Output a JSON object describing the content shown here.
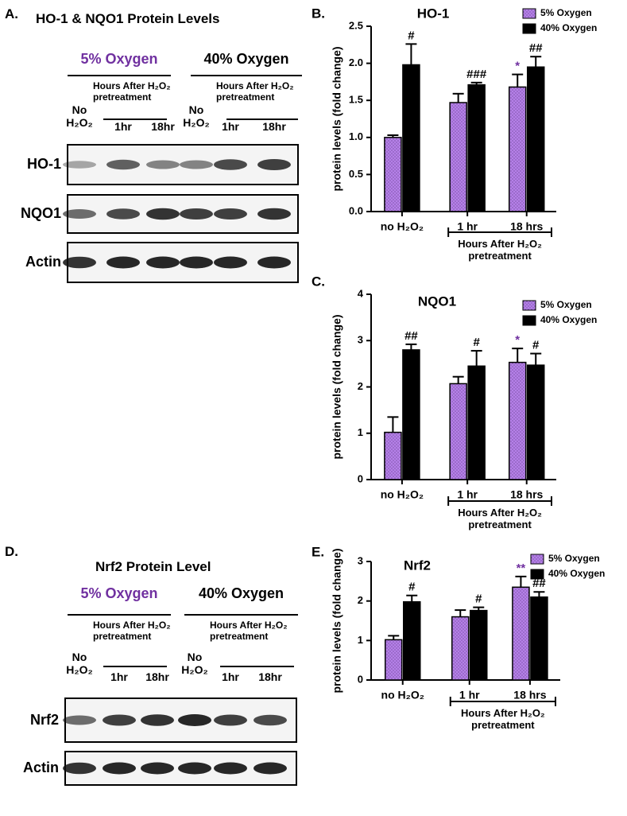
{
  "blots": [
    {
      "letter": "A.",
      "title": "HO-1 & NQO1 Protein Levels",
      "groups": [
        {
          "label": "5% Oxygen",
          "color": "#7030a0",
          "hours_label": "Hours After H₂O₂ pretreatment",
          "lanes": [
            "No H₂O₂",
            "1hr",
            "18hr"
          ]
        },
        {
          "label": "40% Oxygen",
          "color": "#000000",
          "hours_label": "Hours After H₂O₂ pretreatment",
          "lanes": [
            "No H₂O₂",
            "1hr",
            "18hr"
          ]
        }
      ],
      "rows": [
        "HO-1",
        "NQO1",
        "Actin"
      ]
    },
    {
      "letter": "D.",
      "title": "Nrf2 Protein Level",
      "groups": [
        {
          "label": "5% Oxygen",
          "color": "#7030a0",
          "hours_label": "Hours After H₂O₂ pretreatment",
          "lanes": [
            "No H₂O₂",
            "1hr",
            "18hr"
          ]
        },
        {
          "label": "40% Oxygen",
          "color": "#000000",
          "hours_label": "Hours After H₂O₂ pretreatment",
          "lanes": [
            "No H₂O₂",
            "1hr",
            "18hr"
          ]
        }
      ],
      "rows": [
        "Nrf2",
        "Actin"
      ]
    }
  ],
  "chart_data": [
    {
      "type": "bar",
      "panel": "B.",
      "title": "HO-1",
      "y_label": "protein levels (fold change)",
      "categories": [
        "no H₂O₂",
        "1 hr",
        "18 hrs"
      ],
      "group_label": "Hours After H₂O₂ pretreatment",
      "ylim": [
        0,
        2.5
      ],
      "yticks": [
        {
          "value": 0,
          "label": "0.0"
        },
        0.5,
        {
          "value": 1,
          "label": "1.0"
        },
        1.5,
        {
          "value": 2,
          "label": "2.0"
        },
        2.5
      ],
      "series": [
        {
          "name": "5% Oxygen",
          "color": "#b580e8",
          "annotation_color": "#7030a0",
          "values": [
            1.0,
            1.47,
            1.68
          ],
          "errors": [
            0.03,
            0.12,
            0.17
          ],
          "annotations": [
            null,
            null,
            "*"
          ]
        },
        {
          "name": "40% Oxygen",
          "color": "#000000",
          "annotation_color": "#000000",
          "values": [
            1.98,
            1.71,
            1.95
          ],
          "errors": [
            0.28,
            0.03,
            0.14
          ],
          "annotations": [
            "#",
            "###",
            "##"
          ]
        }
      ]
    },
    {
      "type": "bar",
      "panel": "C.",
      "title": "NQO1",
      "y_label": "protein levels (fold change)",
      "categories": [
        "no H₂O₂",
        "1 hr",
        "18 hrs"
      ],
      "group_label": "Hours After H₂O₂ pretreatment",
      "ylim": [
        0,
        4
      ],
      "yticks": [
        0,
        1,
        2,
        3,
        4
      ],
      "series": [
        {
          "name": "5% Oxygen",
          "color": "#b580e8",
          "annotation_color": "#7030a0",
          "values": [
            1.02,
            2.07,
            2.53
          ],
          "errors": [
            0.33,
            0.15,
            0.3
          ],
          "annotations": [
            null,
            null,
            "*"
          ]
        },
        {
          "name": "40% Oxygen",
          "color": "#000000",
          "annotation_color": "#000000",
          "values": [
            2.8,
            2.45,
            2.47
          ],
          "errors": [
            0.12,
            0.33,
            0.25
          ],
          "annotations": [
            "##",
            "#",
            "#"
          ]
        }
      ]
    },
    {
      "type": "bar",
      "panel": "E.",
      "title": "Nrf2",
      "y_label": "protein levels (fold change)",
      "categories": [
        "no H₂O₂",
        "1 hr",
        "18 hrs"
      ],
      "group_label": "Hours After H₂O₂ pretreatment",
      "ylim": [
        0,
        3
      ],
      "yticks": [
        0,
        1,
        2,
        3
      ],
      "series": [
        {
          "name": "5% Oxygen",
          "color": "#b580e8",
          "annotation_color": "#7030a0",
          "values": [
            1.02,
            1.6,
            2.35
          ],
          "errors": [
            0.1,
            0.17,
            0.27
          ],
          "annotations": [
            null,
            null,
            "**"
          ]
        },
        {
          "name": "40% Oxygen",
          "color": "#000000",
          "annotation_color": "#000000",
          "values": [
            1.98,
            1.76,
            2.1
          ],
          "errors": [
            0.16,
            0.08,
            0.13
          ],
          "annotations": [
            "#",
            "#",
            "##"
          ]
        }
      ]
    }
  ]
}
